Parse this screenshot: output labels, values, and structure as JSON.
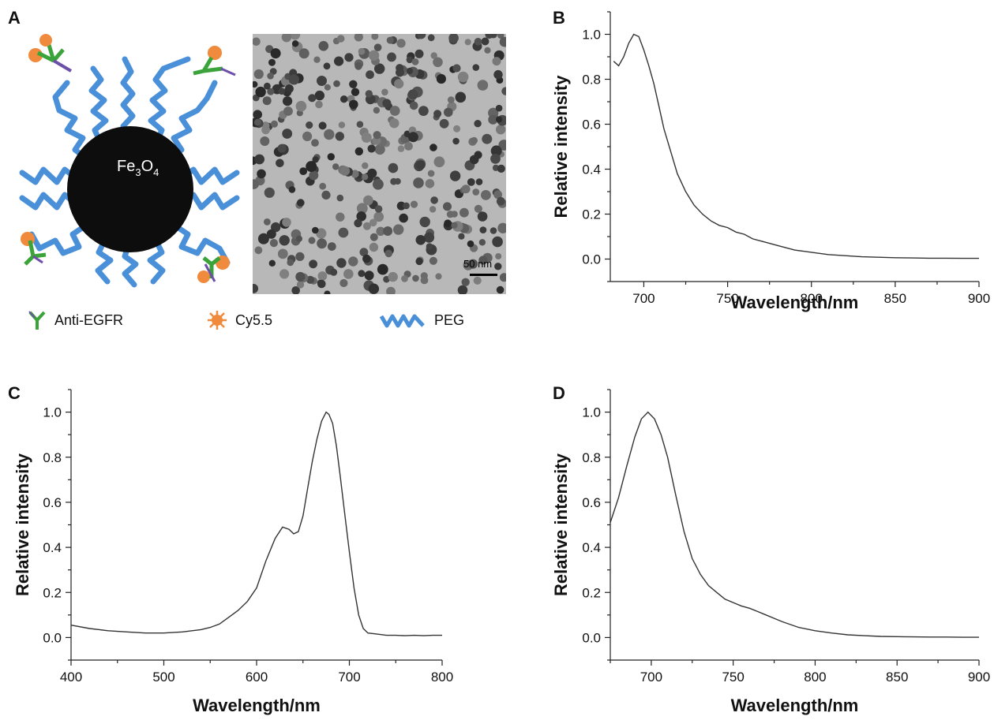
{
  "panel_labels": {
    "a": "A",
    "b": "B",
    "c": "C",
    "d": "D"
  },
  "schematic": {
    "core_label_main": "Fe",
    "core_label_sub1": "3",
    "core_label_mid": "O",
    "core_label_sub2": "4",
    "scale_bar_label": "50 nm",
    "legend": {
      "antibody": "Anti-EGFR",
      "dye": "Cy5.5",
      "polymer": "PEG"
    },
    "colors": {
      "core": "#0d0d0d",
      "peg": "#4a90d9",
      "antibody_green": "#3aa43a",
      "antibody_purple": "#6b4fa8",
      "dye": "#f08a3c"
    }
  },
  "chart_data": [
    {
      "id": "B",
      "type": "line",
      "xlabel": "Wavelength/nm",
      "ylabel": "Relative intensity",
      "xlim": [
        680,
        900
      ],
      "ylim": [
        -0.1,
        1.1
      ],
      "xticks": [
        700,
        750,
        800,
        850,
        900
      ],
      "yticks": [
        0.0,
        0.2,
        0.4,
        0.6,
        0.8,
        1.0
      ],
      "x": [
        682,
        685,
        688,
        691,
        694,
        697,
        700,
        703,
        706,
        709,
        712,
        716,
        720,
        725,
        730,
        735,
        740,
        745,
        750,
        755,
        760,
        765,
        770,
        775,
        780,
        790,
        800,
        810,
        820,
        830,
        840,
        850,
        860,
        870,
        880,
        890,
        900
      ],
      "y": [
        0.88,
        0.86,
        0.9,
        0.96,
        1.0,
        0.99,
        0.93,
        0.86,
        0.78,
        0.68,
        0.58,
        0.48,
        0.38,
        0.3,
        0.24,
        0.2,
        0.17,
        0.15,
        0.14,
        0.12,
        0.11,
        0.09,
        0.08,
        0.07,
        0.06,
        0.04,
        0.03,
        0.02,
        0.015,
        0.01,
        0.008,
        0.006,
        0.005,
        0.004,
        0.004,
        0.003,
        0.003
      ]
    },
    {
      "id": "C",
      "type": "line",
      "xlabel": "Wavelength/nm",
      "ylabel": "Relative intensity",
      "xlim": [
        400,
        800
      ],
      "ylim": [
        -0.1,
        1.1
      ],
      "xticks": [
        400,
        500,
        600,
        700,
        800
      ],
      "yticks": [
        0.0,
        0.2,
        0.4,
        0.6,
        0.8,
        1.0
      ],
      "x": [
        400,
        420,
        440,
        460,
        480,
        500,
        520,
        540,
        550,
        560,
        570,
        580,
        590,
        600,
        610,
        620,
        628,
        635,
        640,
        645,
        650,
        655,
        660,
        665,
        670,
        675,
        678,
        682,
        686,
        690,
        695,
        700,
        705,
        710,
        715,
        720,
        730,
        740,
        750,
        760,
        770,
        780,
        790,
        800
      ],
      "y": [
        0.055,
        0.04,
        0.03,
        0.025,
        0.02,
        0.02,
        0.025,
        0.035,
        0.045,
        0.06,
        0.09,
        0.12,
        0.16,
        0.22,
        0.34,
        0.44,
        0.49,
        0.48,
        0.46,
        0.47,
        0.54,
        0.66,
        0.78,
        0.88,
        0.96,
        1.0,
        0.99,
        0.95,
        0.85,
        0.72,
        0.55,
        0.38,
        0.22,
        0.1,
        0.04,
        0.02,
        0.015,
        0.01,
        0.01,
        0.008,
        0.01,
        0.008,
        0.01,
        0.01
      ]
    },
    {
      "id": "D",
      "type": "line",
      "xlabel": "Wavelength/nm",
      "ylabel": "Relative intensity",
      "xlim": [
        675,
        900
      ],
      "ylim": [
        -0.1,
        1.1
      ],
      "xticks": [
        700,
        750,
        800,
        850,
        900
      ],
      "yticks": [
        0.0,
        0.2,
        0.4,
        0.6,
        0.8,
        1.0
      ],
      "x": [
        675,
        680,
        685,
        690,
        694,
        698,
        702,
        706,
        710,
        715,
        720,
        725,
        730,
        735,
        740,
        745,
        750,
        755,
        760,
        765,
        770,
        775,
        780,
        790,
        800,
        810,
        820,
        830,
        840,
        850,
        860,
        870,
        880,
        890,
        900
      ],
      "y": [
        0.51,
        0.62,
        0.76,
        0.89,
        0.97,
        1.0,
        0.97,
        0.9,
        0.8,
        0.63,
        0.47,
        0.35,
        0.28,
        0.23,
        0.2,
        0.17,
        0.155,
        0.14,
        0.13,
        0.115,
        0.1,
        0.085,
        0.07,
        0.045,
        0.03,
        0.02,
        0.012,
        0.008,
        0.005,
        0.004,
        0.003,
        0.002,
        0.002,
        0.001,
        0.001
      ]
    }
  ]
}
